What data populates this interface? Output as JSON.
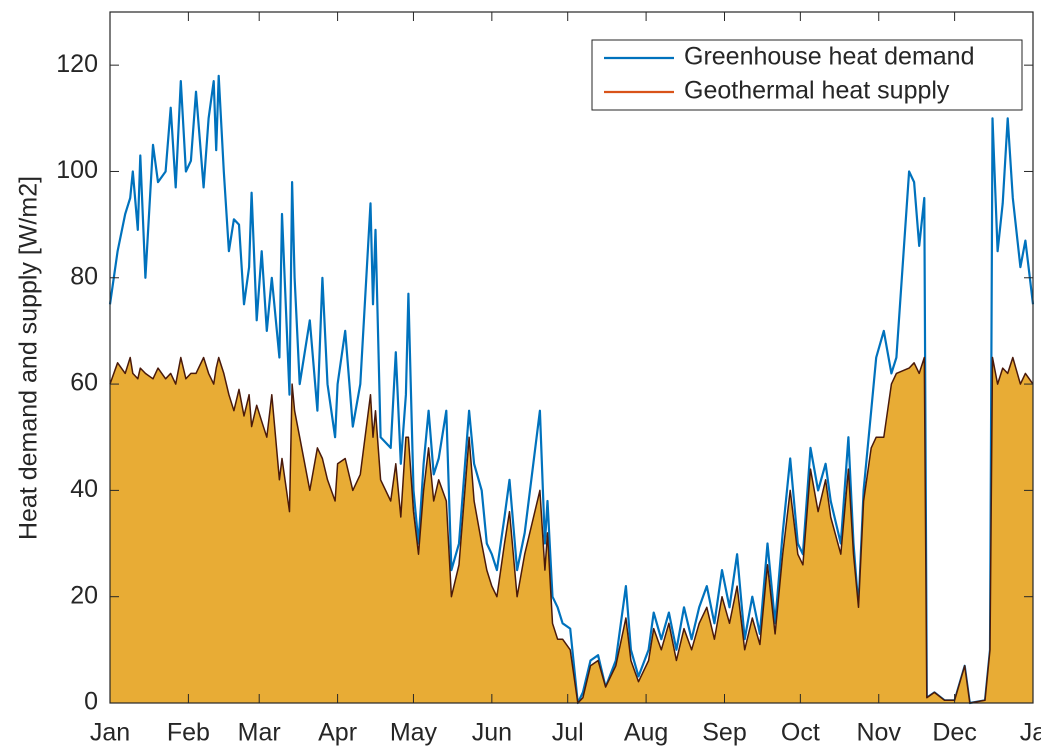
{
  "chart_data": {
    "type": "area-line",
    "y_label": "Heat demand and supply [W/m2]",
    "x": [
      0,
      3,
      6,
      8,
      9,
      11,
      12,
      14,
      17,
      19,
      22,
      24,
      26,
      28,
      30,
      32,
      34,
      37,
      39,
      41,
      42,
      43,
      45,
      47,
      49,
      51,
      53,
      55,
      56,
      58,
      60,
      62,
      64,
      67,
      68,
      71,
      72,
      73,
      75,
      79,
      82,
      84,
      86,
      89,
      90,
      93,
      96,
      99,
      103,
      104,
      105,
      107,
      111,
      113,
      115,
      117,
      118,
      120,
      122,
      124,
      126,
      128,
      130,
      133,
      135,
      138,
      142,
      144,
      147,
      149,
      151,
      153,
      156,
      158,
      161,
      164,
      170,
      172,
      173,
      175,
      177,
      179,
      182,
      185,
      187,
      190,
      193,
      196,
      200,
      204,
      206,
      209,
      213,
      215,
      218,
      221,
      224,
      227,
      230,
      233,
      236,
      239,
      242,
      245,
      248,
      251,
      254,
      257,
      260,
      263,
      266,
      269,
      272,
      274,
      277,
      280,
      283,
      285,
      289,
      292,
      294,
      296,
      298,
      301,
      303,
      306,
      309,
      311,
      316,
      318,
      320,
      322,
      323,
      326,
      330,
      334,
      338,
      340,
      346,
      348,
      349,
      351,
      353,
      355,
      357,
      360,
      362,
      365
    ],
    "series": [
      {
        "name": "Greenhouse heat demand",
        "color": "#0072bd",
        "values": [
          75,
          85,
          92,
          95,
          100,
          89,
          103,
          80,
          105,
          98,
          100,
          112,
          97,
          117,
          100,
          102,
          115,
          97,
          110,
          117,
          104,
          118,
          100,
          85,
          91,
          90,
          75,
          82,
          96,
          72,
          85,
          70,
          80,
          65,
          92,
          58,
          98,
          80,
          60,
          72,
          55,
          80,
          60,
          50,
          60,
          70,
          52,
          60,
          94,
          75,
          89,
          50,
          48,
          66,
          45,
          58,
          77,
          40,
          30,
          45,
          55,
          43,
          46,
          55,
          25,
          30,
          55,
          45,
          40,
          30,
          28,
          25,
          35,
          42,
          25,
          32,
          55,
          30,
          38,
          20,
          18,
          15,
          14,
          0,
          2,
          8,
          9,
          3,
          8,
          22,
          10,
          5,
          10,
          17,
          12,
          17,
          10,
          18,
          12,
          18,
          22,
          15,
          25,
          18,
          28,
          12,
          20,
          13,
          30,
          15,
          32,
          46,
          30,
          28,
          48,
          40,
          45,
          38,
          30,
          50,
          30,
          18,
          40,
          55,
          65,
          70,
          62,
          65,
          100,
          98,
          86,
          95,
          1,
          2,
          0.5,
          0.5,
          7,
          0,
          0.5,
          10,
          110,
          85,
          94,
          110,
          95,
          82,
          87,
          75
        ]
      },
      {
        "name": "Geothermal heat supply",
        "color": "#d95319",
        "fill": "#e8ac35",
        "edge": "#4a1a0a",
        "values": [
          60,
          64,
          62,
          65,
          62,
          61,
          63,
          62,
          61,
          63,
          61,
          62,
          60,
          65,
          61,
          62,
          62,
          65,
          62,
          60,
          63,
          65,
          62,
          58,
          55,
          59,
          54,
          58,
          52,
          56,
          53,
          50,
          58,
          42,
          46,
          36,
          60,
          55,
          50,
          40,
          48,
          46,
          42,
          38,
          45,
          46,
          40,
          43,
          58,
          50,
          55,
          42,
          38,
          45,
          35,
          50,
          50,
          36,
          28,
          40,
          48,
          38,
          42,
          38,
          20,
          26,
          50,
          38,
          30,
          25,
          22,
          20,
          30,
          36,
          20,
          28,
          40,
          25,
          32,
          15,
          12,
          12,
          10,
          0,
          1,
          7,
          8,
          3,
          7,
          16,
          8,
          4,
          8,
          14,
          10,
          15,
          8,
          14,
          10,
          15,
          18,
          12,
          20,
          15,
          22,
          10,
          16,
          11,
          26,
          13,
          28,
          40,
          28,
          26,
          44,
          36,
          42,
          35,
          28,
          44,
          28,
          18,
          38,
          48,
          50,
          50,
          60,
          62,
          63,
          64,
          62,
          65,
          1,
          2,
          0.5,
          0.5,
          7,
          0,
          0.5,
          10,
          65,
          60,
          63,
          62,
          65,
          60,
          62,
          60
        ]
      }
    ],
    "xlim": [
      0,
      365
    ],
    "xticks": [
      {
        "value": 0,
        "label": "Jan"
      },
      {
        "value": 31,
        "label": "Feb"
      },
      {
        "value": 59,
        "label": "Mar"
      },
      {
        "value": 90,
        "label": "Apr"
      },
      {
        "value": 120,
        "label": "May"
      },
      {
        "value": 151,
        "label": "Jun"
      },
      {
        "value": 181,
        "label": "Jul"
      },
      {
        "value": 212,
        "label": "Aug"
      },
      {
        "value": 243,
        "label": "Sep"
      },
      {
        "value": 273,
        "label": "Oct"
      },
      {
        "value": 304,
        "label": "Nov"
      },
      {
        "value": 334,
        "label": "Dec"
      },
      {
        "value": 365,
        "label": "Ja"
      }
    ],
    "ylim": [
      0,
      130
    ],
    "yticks": [
      0,
      20,
      40,
      60,
      80,
      100,
      120
    ],
    "legend": "upper right"
  }
}
